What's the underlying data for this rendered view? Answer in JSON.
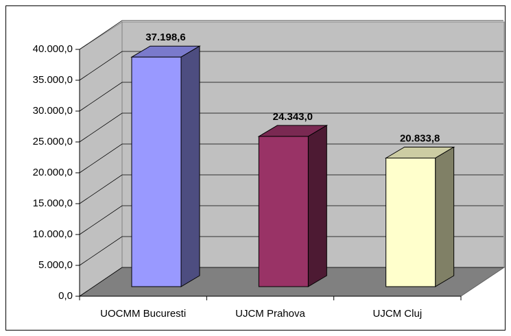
{
  "chart_data": {
    "type": "bar3d",
    "categories": [
      "UOCMM Bucuresti",
      "UJCM Prahova",
      "UJCM Cluj"
    ],
    "values": [
      37198.6,
      24343.0,
      20833.8
    ],
    "value_labels": [
      "37.198,6",
      "24.343,0",
      "20.833,8"
    ],
    "colors": [
      "#9999ff",
      "#993366",
      "#ffffcc"
    ],
    "ylim": [
      0,
      40000
    ],
    "yticks": [
      {
        "value": 0,
        "label": "0,0"
      },
      {
        "value": 5000,
        "label": "5.000,0"
      },
      {
        "value": 10000,
        "label": "10.000,0"
      },
      {
        "value": 15000,
        "label": "15.000,0"
      },
      {
        "value": 20000,
        "label": "20.000,0"
      },
      {
        "value": 25000,
        "label": "25.000,0"
      },
      {
        "value": 30000,
        "label": "30.000,0"
      },
      {
        "value": 35000,
        "label": "35.000,0"
      },
      {
        "value": 40000,
        "label": "40.000,0"
      }
    ],
    "grid": true
  }
}
